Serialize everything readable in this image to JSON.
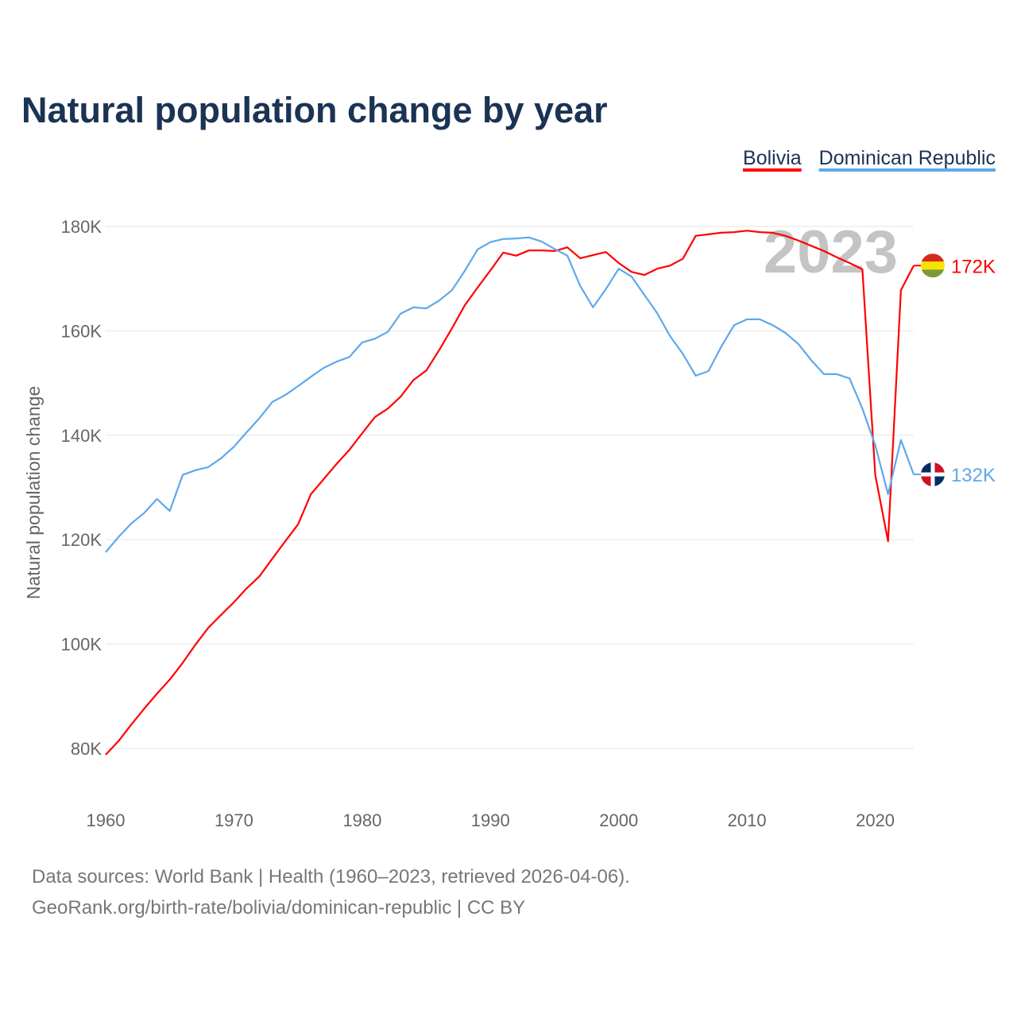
{
  "chart_data": {
    "type": "line",
    "title": "Natural population change by year",
    "ylabel": "Natural population change",
    "xlabel": "",
    "xlim": [
      1960,
      2023
    ],
    "ylim": [
      70000,
      190000
    ],
    "x_ticks": [
      1960,
      1970,
      1980,
      1990,
      2000,
      2010,
      2020
    ],
    "y_ticks": [
      80000,
      100000,
      120000,
      140000,
      160000,
      180000
    ],
    "y_tick_labels": [
      "80K",
      "100K",
      "120K",
      "140K",
      "160K",
      "180K"
    ],
    "grid": true,
    "legend_position": "top-right",
    "year_watermark": "2023",
    "x": [
      1960,
      1961,
      1962,
      1963,
      1964,
      1965,
      1966,
      1967,
      1968,
      1969,
      1970,
      1971,
      1972,
      1973,
      1974,
      1975,
      1976,
      1977,
      1978,
      1979,
      1980,
      1981,
      1982,
      1983,
      1984,
      1985,
      1986,
      1987,
      1988,
      1989,
      1990,
      1991,
      1992,
      1993,
      1994,
      1995,
      1996,
      1997,
      1998,
      1999,
      2000,
      2001,
      2002,
      2003,
      2004,
      2005,
      2006,
      2007,
      2008,
      2009,
      2010,
      2011,
      2012,
      2013,
      2014,
      2015,
      2016,
      2017,
      2018,
      2019,
      2020,
      2021,
      2022,
      2023
    ],
    "series": [
      {
        "name": "Bolivia",
        "color": "#ff0000",
        "end_label": "172K",
        "values": [
          78800,
          81400,
          84600,
          87600,
          90500,
          93200,
          96400,
          99900,
          103100,
          105600,
          108000,
          110700,
          113000,
          116400,
          119700,
          122900,
          128700,
          131600,
          134500,
          137200,
          140400,
          143500,
          145100,
          147400,
          150600,
          152400,
          156300,
          160500,
          164900,
          168300,
          171600,
          175000,
          174400,
          175400,
          175400,
          175300,
          176000,
          173900,
          174500,
          175100,
          173000,
          171300,
          170700,
          171900,
          172500,
          173800,
          178200,
          178500,
          178800,
          178900,
          179200,
          178900,
          178800,
          178200,
          177300,
          176300,
          175300,
          174100,
          173000,
          171800,
          132400,
          119700,
          167800,
          172500
        ]
      },
      {
        "name": "Dominican Republic",
        "color": "#5ea8ed",
        "end_label": "132K",
        "values": [
          117600,
          120500,
          123100,
          125100,
          127800,
          125500,
          132400,
          133300,
          133900,
          135600,
          137800,
          140600,
          143300,
          146400,
          147700,
          149400,
          151200,
          152900,
          154100,
          155000,
          157800,
          158500,
          159800,
          163300,
          164500,
          164300,
          165800,
          167800,
          171500,
          175600,
          177000,
          177600,
          177700,
          177900,
          177100,
          175700,
          174400,
          168600,
          164500,
          168000,
          171900,
          170400,
          166900,
          163400,
          159000,
          155600,
          151400,
          152300,
          157000,
          161100,
          162200,
          162200,
          161100,
          159600,
          157500,
          154400,
          151700,
          151700,
          150900,
          145100,
          138100,
          128700,
          139100,
          132500
        ]
      }
    ]
  },
  "footer": {
    "source": "Data sources: World Bank | Health (1960–2023, retrieved 2026-04-06).",
    "credit": "GeoRank.org/birth-rate/bolivia/dominican-republic | CC BY"
  }
}
